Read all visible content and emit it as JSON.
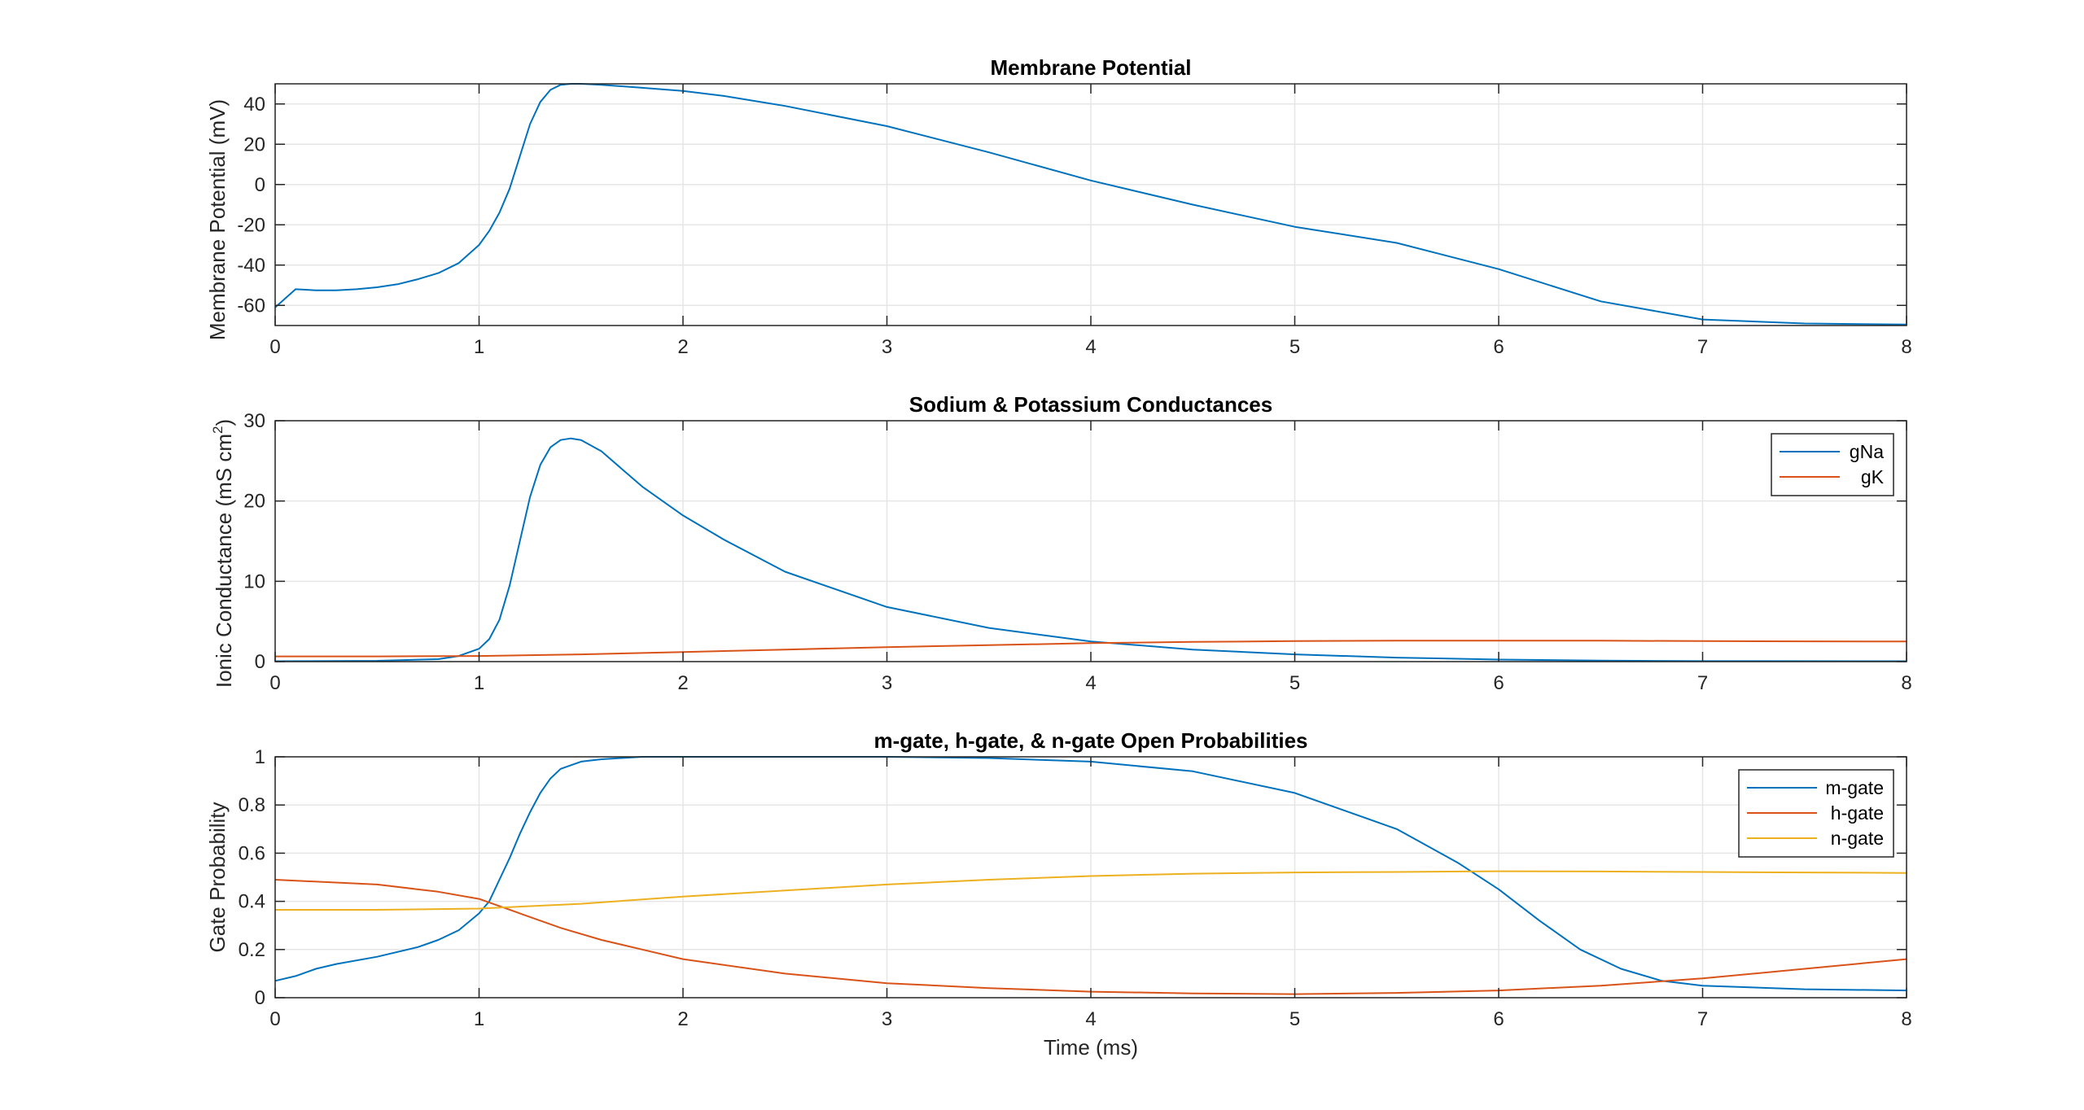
{
  "chart_data": [
    {
      "type": "line",
      "title": "Membrane Potential",
      "xlabel": "",
      "ylabel": "Membrane Potential (mV)",
      "xlim": [
        0,
        8
      ],
      "ylim": [
        -70,
        50
      ],
      "xticks": [
        0,
        1,
        2,
        3,
        4,
        5,
        6,
        7,
        8
      ],
      "yticks": [
        -60,
        -40,
        -20,
        0,
        20,
        40
      ],
      "grid": true,
      "legend": null,
      "series": [
        {
          "color": "#0072BD",
          "x": [
            0,
            0.1,
            0.2,
            0.3,
            0.4,
            0.5,
            0.6,
            0.7,
            0.8,
            0.9,
            1.0,
            1.05,
            1.1,
            1.15,
            1.2,
            1.25,
            1.3,
            1.35,
            1.4,
            1.45,
            1.5,
            1.6,
            1.8,
            2.0,
            2.2,
            2.5,
            3.0,
            3.5,
            4.0,
            4.5,
            5.0,
            5.5,
            6.0,
            6.5,
            7.0,
            7.5,
            8.0
          ],
          "y": [
            -61,
            -52,
            -52.5,
            -52.5,
            -52,
            -51,
            -49.5,
            -47,
            -44,
            -39,
            -30,
            -23,
            -14,
            -2,
            14,
            30,
            41,
            47,
            49.5,
            50,
            50,
            49.5,
            48,
            46.5,
            44,
            39,
            29,
            16,
            2,
            -10,
            -21,
            -29,
            -42,
            -58,
            -67,
            -69,
            -69.5
          ]
        }
      ]
    },
    {
      "type": "line",
      "title": "Sodium & Potassium Conductances",
      "xlabel": "",
      "ylabel": "Ionic Conductance (mS cm",
      "ylabel_superscript": "2",
      "ylabel_suffix": ")",
      "xlim": [
        0,
        8
      ],
      "ylim": [
        0,
        30
      ],
      "xticks": [
        0,
        1,
        2,
        3,
        4,
        5,
        6,
        7,
        8
      ],
      "yticks": [
        0,
        10,
        20,
        30
      ],
      "grid": true,
      "legend": "top-right",
      "series": [
        {
          "name": "gNa",
          "color": "#0072BD",
          "x": [
            0,
            0.5,
            0.8,
            0.9,
            1.0,
            1.05,
            1.1,
            1.15,
            1.2,
            1.25,
            1.3,
            1.35,
            1.4,
            1.45,
            1.5,
            1.6,
            1.7,
            1.8,
            2.0,
            2.2,
            2.5,
            3.0,
            3.5,
            4.0,
            4.5,
            5.0,
            5.5,
            6.0,
            6.5,
            7.0,
            8.0
          ],
          "y": [
            0.05,
            0.1,
            0.3,
            0.7,
            1.6,
            2.8,
            5.2,
            9.5,
            15,
            20.5,
            24.5,
            26.7,
            27.6,
            27.8,
            27.6,
            26.2,
            24,
            21.8,
            18.2,
            15.2,
            11.2,
            6.8,
            4.2,
            2.5,
            1.5,
            0.9,
            0.5,
            0.25,
            0.12,
            0.06,
            0.05
          ]
        },
        {
          "name": "gK",
          "color": "#D95319",
          "x": [
            0,
            0.5,
            1.0,
            1.5,
            2.0,
            2.5,
            3.0,
            3.5,
            4.0,
            4.5,
            5.0,
            5.5,
            6.0,
            6.5,
            7.0,
            7.5,
            8.0
          ],
          "y": [
            0.65,
            0.65,
            0.7,
            0.9,
            1.2,
            1.5,
            1.8,
            2.05,
            2.3,
            2.45,
            2.55,
            2.6,
            2.6,
            2.6,
            2.55,
            2.52,
            2.5
          ]
        }
      ]
    },
    {
      "type": "line",
      "title": "m-gate, h-gate, & n-gate Open Probabilities",
      "xlabel": "Time (ms)",
      "ylabel": "Gate Probability",
      "xlim": [
        0,
        8
      ],
      "ylim": [
        0,
        1
      ],
      "xticks": [
        0,
        1,
        2,
        3,
        4,
        5,
        6,
        7,
        8
      ],
      "yticks": [
        0,
        0.2,
        0.4,
        0.6,
        0.8,
        1
      ],
      "grid": true,
      "legend": "top-right",
      "series": [
        {
          "name": "m-gate",
          "color": "#0072BD",
          "x": [
            0,
            0.1,
            0.2,
            0.3,
            0.5,
            0.7,
            0.8,
            0.9,
            1.0,
            1.05,
            1.1,
            1.15,
            1.2,
            1.25,
            1.3,
            1.35,
            1.4,
            1.5,
            1.6,
            1.8,
            2.0,
            2.5,
            3.0,
            3.5,
            4.0,
            4.5,
            5.0,
            5.5,
            5.8,
            6.0,
            6.2,
            6.4,
            6.6,
            6.8,
            7.0,
            7.5,
            8.0
          ],
          "y": [
            0.07,
            0.09,
            0.12,
            0.14,
            0.17,
            0.21,
            0.24,
            0.28,
            0.35,
            0.4,
            0.49,
            0.58,
            0.68,
            0.77,
            0.85,
            0.91,
            0.95,
            0.98,
            0.99,
            1.0,
            1.0,
            1.0,
            1.0,
            0.995,
            0.98,
            0.94,
            0.85,
            0.7,
            0.56,
            0.45,
            0.32,
            0.2,
            0.12,
            0.07,
            0.05,
            0.035,
            0.03
          ]
        },
        {
          "name": "h-gate",
          "color": "#D95319",
          "x": [
            0,
            0.5,
            0.8,
            1.0,
            1.2,
            1.4,
            1.6,
            1.8,
            2.0,
            2.5,
            3.0,
            3.5,
            4.0,
            4.5,
            5.0,
            5.5,
            6.0,
            6.5,
            7.0,
            7.5,
            8.0
          ],
          "y": [
            0.49,
            0.47,
            0.44,
            0.41,
            0.35,
            0.29,
            0.24,
            0.2,
            0.16,
            0.1,
            0.06,
            0.04,
            0.025,
            0.018,
            0.015,
            0.02,
            0.03,
            0.05,
            0.08,
            0.12,
            0.16
          ]
        },
        {
          "name": "n-gate",
          "color": "#EDB120",
          "x": [
            0,
            0.5,
            1.0,
            1.5,
            2.0,
            2.5,
            3.0,
            3.5,
            4.0,
            4.5,
            5.0,
            5.5,
            6.0,
            6.5,
            7.0,
            7.5,
            8.0
          ],
          "y": [
            0.365,
            0.365,
            0.37,
            0.39,
            0.42,
            0.445,
            0.47,
            0.49,
            0.505,
            0.515,
            0.52,
            0.522,
            0.525,
            0.524,
            0.522,
            0.52,
            0.518
          ]
        }
      ]
    }
  ]
}
